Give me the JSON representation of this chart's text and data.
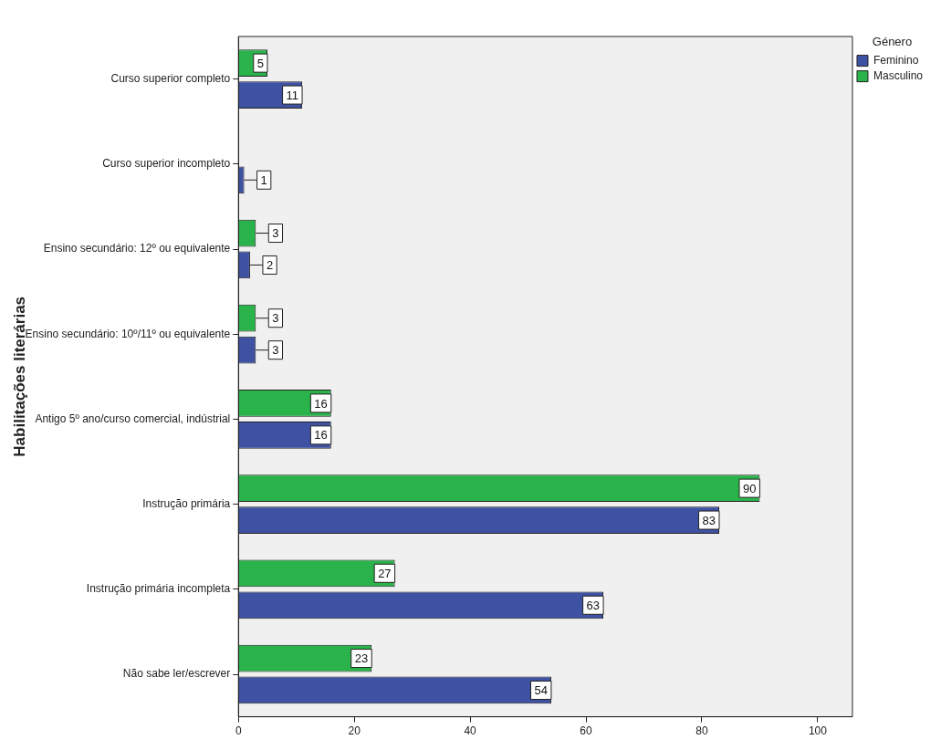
{
  "chart_data": {
    "type": "bar",
    "orientation": "horizontal",
    "ylabel": "Habilitações literárias",
    "legend_title": "Género",
    "categories": [
      "Curso superior completo",
      "Curso superior incompleto",
      "Ensino secundário: 12º ou equivalente",
      "Ensino secundário: 10º/11º ou equivalente",
      "Antigo 5º ano/curso comercial, indústrial",
      "Instrução primária",
      "Instrução primária incompleta",
      "Não sabe ler/escrever"
    ],
    "series": [
      {
        "name": "Feminino",
        "color": "#3f51a3",
        "values": [
          11,
          1,
          2,
          3,
          16,
          83,
          63,
          54
        ]
      },
      {
        "name": "Masculino",
        "color": "#2ab34b",
        "values": [
          5,
          null,
          3,
          3,
          16,
          90,
          27,
          23
        ]
      }
    ],
    "xlim": [
      0,
      106
    ],
    "xticks": [
      0,
      20,
      40,
      60,
      80,
      100
    ],
    "grid": false,
    "legend": "top right",
    "data_labels": true
  }
}
